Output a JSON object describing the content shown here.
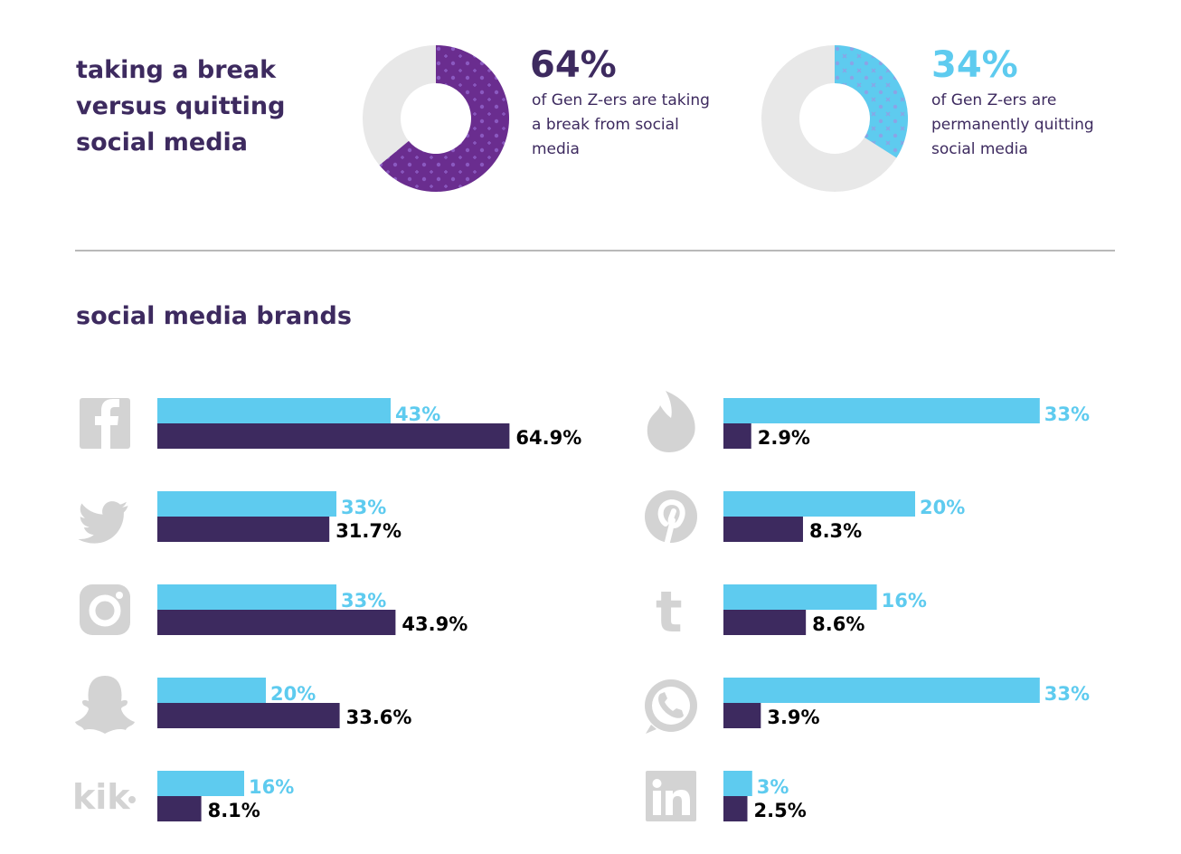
{
  "header": {
    "break_title": "taking a break versus quitting social media",
    "brands_title": "social media brands"
  },
  "stats": [
    {
      "value": "64%",
      "description": "of Gen Z-ers are taking a break from social media",
      "percent": 64,
      "color": "#6a2d8f"
    },
    {
      "value": "34%",
      "description": "of Gen Z-ers are permanently quitting social media",
      "percent": 34,
      "color": "#5ecbef"
    }
  ],
  "colors": {
    "cyan": "#5ecbef",
    "dark": "#3d2a5f",
    "donut_track": "#e8e8e8",
    "icon_gray": "#d3d3d3"
  },
  "chart_data": [
    {
      "type": "bar",
      "orientation": "horizontal",
      "categories": [
        "facebook",
        "twitter",
        "instagram",
        "snapchat",
        "kik"
      ],
      "icons": [
        "facebook-icon",
        "twitter-icon",
        "instagram-icon",
        "snapchat-icon",
        "kik-icon"
      ],
      "series": [
        {
          "color": "#5ecbef",
          "values": [
            43,
            33,
            33,
            20,
            16
          ],
          "labels": [
            "43%",
            "33%",
            "33%",
            "20%",
            "16%"
          ]
        },
        {
          "color": "#3d2a5f",
          "values": [
            64.9,
            31.7,
            43.9,
            33.6,
            8.1
          ],
          "labels": [
            "64.9%",
            "31.7%",
            "43.9%",
            "33.6%",
            "8.1%"
          ]
        }
      ]
    },
    {
      "type": "bar",
      "orientation": "horizontal",
      "categories": [
        "tinder",
        "pinterest",
        "tumblr",
        "whatsapp",
        "linkedin"
      ],
      "icons": [
        "tinder-icon",
        "pinterest-icon",
        "tumblr-icon",
        "whatsapp-icon",
        "linkedin-icon"
      ],
      "series": [
        {
          "color": "#5ecbef",
          "values": [
            33,
            20,
            16,
            33,
            3
          ],
          "labels": [
            "33%",
            "20%",
            "16%",
            "33%",
            "3%"
          ]
        },
        {
          "color": "#3d2a5f",
          "values": [
            2.9,
            8.3,
            8.6,
            3.9,
            2.5
          ],
          "labels": [
            "2.9%",
            "8.3%",
            "8.6%",
            "3.9%",
            "2.5%"
          ]
        }
      ]
    }
  ]
}
